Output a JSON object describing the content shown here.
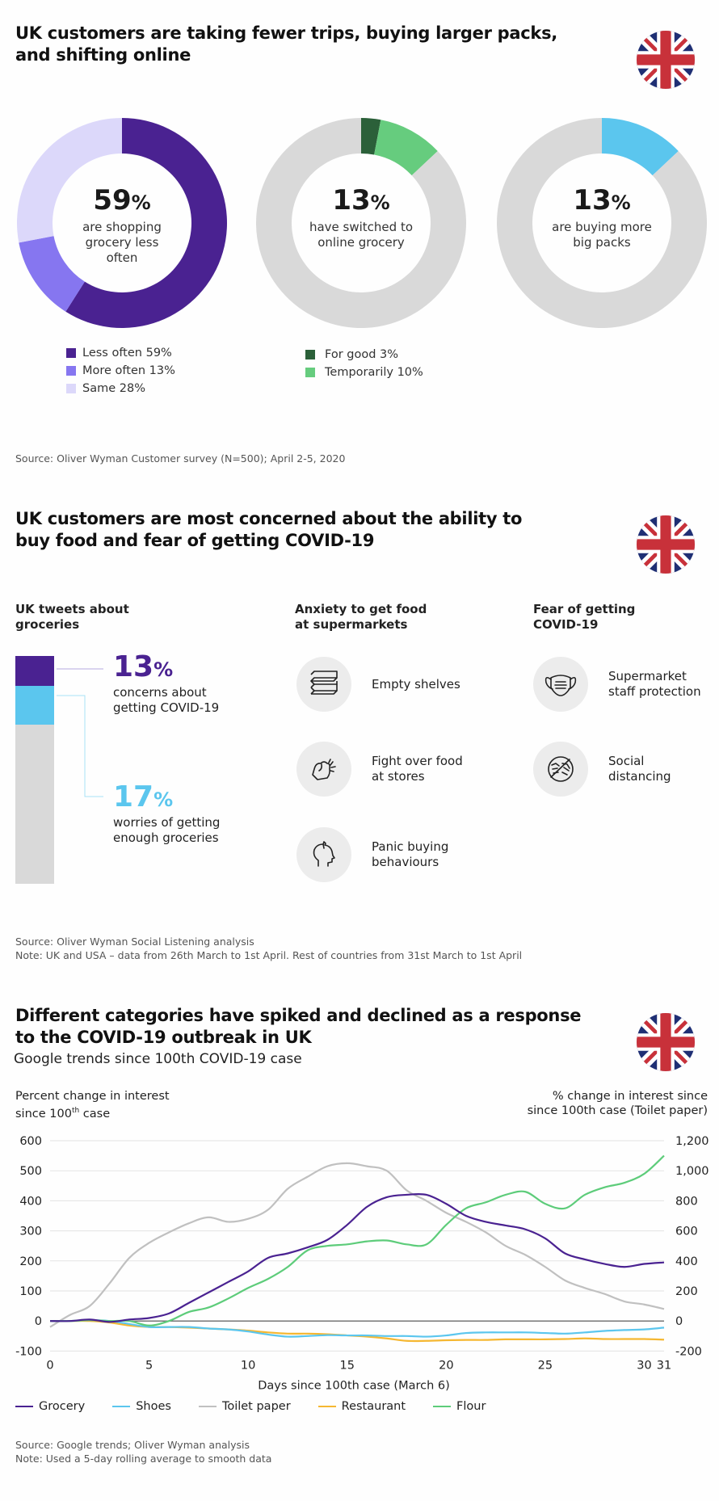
{
  "section1": {
    "title_line1": "UK customers are taking fewer trips, buying larger packs,",
    "title_line2": "and shifting online",
    "flag_icon": "uk-flag-icon",
    "donuts": [
      {
        "value": "59",
        "pct": "%",
        "caption_lines": [
          "are shopping",
          "grocery less",
          "often"
        ],
        "segments": [
          {
            "label": "Less often",
            "value": 59,
            "color": "#4a2291"
          },
          {
            "label": "More often",
            "value": 13,
            "color": "#8676f0"
          },
          {
            "label": "Same",
            "value": 28,
            "color": "#dcd8fa"
          }
        ]
      },
      {
        "value": "13",
        "pct": "%",
        "caption_lines": [
          "have switched to",
          "online grocery"
        ],
        "segments": [
          {
            "label": "For good",
            "value": 3,
            "color": "#2b6039"
          },
          {
            "label": "Temporarily",
            "value": 10,
            "color": "#66cc7e"
          },
          {
            "label": "Other",
            "value": 87,
            "color": "#d9d9d9"
          }
        ]
      },
      {
        "value": "13",
        "pct": "%",
        "caption_lines": [
          "are buying more",
          "big packs"
        ],
        "segments": [
          {
            "label": "Buying more big packs",
            "value": 13,
            "color": "#5bc6ee"
          },
          {
            "label": "Other",
            "value": 87,
            "color": "#d9d9d9"
          }
        ]
      }
    ],
    "legend1": [
      {
        "label": "Less often 59%",
        "color": "#4a2291"
      },
      {
        "label": "More often 13%",
        "color": "#8676f0"
      },
      {
        "label": "Same 28%",
        "color": "#dcd8fa"
      }
    ],
    "legend2": [
      {
        "label": "For good 3%",
        "color": "#2b6039"
      },
      {
        "label": "Temporarily 10%",
        "color": "#66cc7e"
      }
    ],
    "source": "Source: Oliver Wyman Customer survey (N=500); April 2-5, 2020"
  },
  "section2": {
    "title_line1": "UK customers are most concerned about the ability to",
    "title_line2": "buy food and fear of getting COVID-19",
    "col1_head": [
      "UK tweets about",
      "groceries"
    ],
    "col2_head": [
      "Anxiety to get food",
      "at supermarkets"
    ],
    "col3_head": [
      "Fear of getting",
      "COVID-19"
    ],
    "bar": {
      "segments": [
        {
          "label": "concerns about getting COVID-19",
          "value": 13,
          "color": "#4a2291"
        },
        {
          "label": "worries of getting enough groceries",
          "value": 17,
          "color": "#5bc6ee"
        },
        {
          "label": "other",
          "value": 70,
          "color": "#d9d9d9"
        }
      ]
    },
    "stat1": {
      "num": "13",
      "pct": "%",
      "cap1": "concerns about",
      "cap2": "getting COVID-19",
      "color": "#4a2291"
    },
    "stat2": {
      "num": "17",
      "pct": "%",
      "cap1": "worries of getting",
      "cap2": "enough groceries",
      "color": "#5bc6ee"
    },
    "anxiety_items": [
      {
        "icon": "empty-shelves-icon",
        "line1": "Empty shelves",
        "line2": ""
      },
      {
        "icon": "fight-fist-icon",
        "line1": "Fight over food",
        "line2": "at stores"
      },
      {
        "icon": "panic-head-icon",
        "line1": "Panic buying",
        "line2": "behaviours"
      }
    ],
    "fear_items": [
      {
        "icon": "face-mask-icon",
        "line1": "Supermarket",
        "line2": "staff protection"
      },
      {
        "icon": "no-handshake-icon",
        "line1": "Social",
        "line2": "distancing"
      }
    ],
    "source": "Source: Oliver Wyman Social Listening analysis",
    "note": "Note: UK and USA – data from 26th March to 1st April. Rest of countries from 31st March to 1st April"
  },
  "section3": {
    "title_line1": "Different categories have spiked and declined as a response",
    "title_line2": "to the COVID-19 outbreak in UK",
    "subtitle": "Google trends since 100th COVID-19 case",
    "left_axis_title_1": "Percent change in interest",
    "left_axis_title_2a": "since 100",
    "left_axis_title_2sup": "th",
    "left_axis_title_2b": " case",
    "right_axis_title_1": "% change in interest since",
    "right_axis_title_2": "since 100th case (Toilet paper)",
    "source": "Source: Google trends; Oliver Wyman analysis",
    "note": "Note: Used a 5-day rolling average to smooth data"
  },
  "chart_data": {
    "type": "line",
    "title": "Different categories have spiked and declined as a response to the COVID-19 outbreak in UK",
    "subtitle": "Google trends since 100th COVID-19 case",
    "xlabel": "Days since 100th case (March 6)",
    "ylabel": "Percent change in interest since 100th case",
    "y2label": "% change in interest since since 100th case (Toilet paper)",
    "xlim": [
      0,
      31
    ],
    "ylim": [
      -100,
      600
    ],
    "y2lim": [
      -200,
      1200
    ],
    "x_ticks": [
      "0",
      "5",
      "10",
      "15",
      "20",
      "25",
      "30",
      "31"
    ],
    "x_tick_values": [
      0,
      5,
      10,
      15,
      20,
      25,
      30,
      31
    ],
    "y_ticks": [
      "600",
      "500",
      "400",
      "300",
      "200",
      "100",
      "0",
      "-100"
    ],
    "y_tick_values": [
      600,
      500,
      400,
      300,
      200,
      100,
      0,
      -100
    ],
    "y2_ticks": [
      "1,200",
      "1,000",
      "800",
      "600",
      "400",
      "200",
      "0",
      "-200"
    ],
    "grid": true,
    "legend_position": "bottom",
    "x": [
      0,
      1,
      2,
      3,
      4,
      5,
      6,
      7,
      8,
      9,
      10,
      11,
      12,
      13,
      14,
      15,
      16,
      17,
      18,
      19,
      20,
      21,
      22,
      23,
      24,
      25,
      26,
      27,
      28,
      29,
      30,
      31
    ],
    "series": [
      {
        "name": "Grocery",
        "axis": "left",
        "color": "#4a2291",
        "values": [
          0,
          0,
          5,
          -3,
          5,
          10,
          25,
          60,
          95,
          130,
          165,
          210,
          225,
          245,
          270,
          320,
          380,
          412,
          420,
          420,
          390,
          350,
          330,
          318,
          305,
          275,
          225,
          205,
          190,
          180,
          190,
          195
        ]
      },
      {
        "name": "Shoes",
        "axis": "left",
        "color": "#5bc6ee",
        "values": [
          0,
          0,
          3,
          0,
          -10,
          -20,
          -20,
          -20,
          -25,
          -28,
          -35,
          -45,
          -52,
          -50,
          -47,
          -48,
          -48,
          -50,
          -50,
          -52,
          -48,
          -40,
          -38,
          -38,
          -38,
          -40,
          -42,
          -38,
          -33,
          -30,
          -28,
          -22
        ]
      },
      {
        "name": "Toilet paper",
        "axis": "right",
        "color": "#c0c0c0",
        "values": [
          -40,
          40,
          100,
          250,
          420,
          520,
          590,
          650,
          690,
          660,
          680,
          740,
          880,
          960,
          1030,
          1050,
          1030,
          1000,
          870,
          800,
          720,
          660,
          590,
          500,
          440,
          360,
          270,
          220,
          180,
          130,
          110,
          80
        ]
      },
      {
        "name": "Restaurant",
        "axis": "left",
        "color": "#f5b731",
        "values": [
          0,
          0,
          0,
          -5,
          -15,
          -20,
          -20,
          -22,
          -25,
          -28,
          -32,
          -38,
          -42,
          -42,
          -44,
          -48,
          -52,
          -58,
          -66,
          -66,
          -64,
          -63,
          -63,
          -61,
          -61,
          -61,
          -60,
          -58,
          -60,
          -60,
          -60,
          -62
        ]
      },
      {
        "name": "Flour",
        "axis": "left",
        "color": "#5dcc7a",
        "values": [
          0,
          0,
          3,
          0,
          0,
          -15,
          0,
          30,
          45,
          75,
          110,
          140,
          180,
          235,
          250,
          255,
          265,
          268,
          255,
          255,
          320,
          375,
          395,
          420,
          430,
          390,
          375,
          420,
          445,
          460,
          490,
          550
        ]
      }
    ]
  }
}
